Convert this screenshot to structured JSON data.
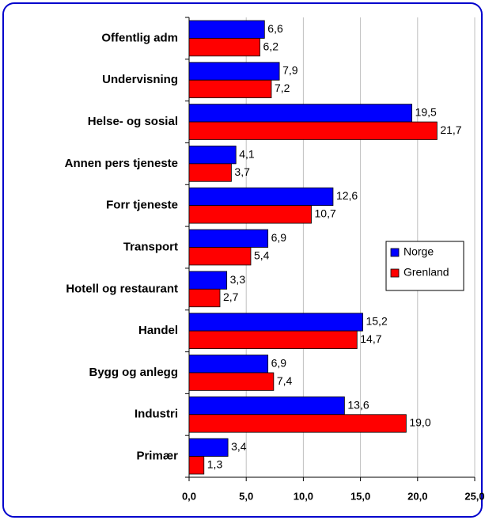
{
  "chart_data": {
    "type": "hbar",
    "categories": [
      "Offentlig adm",
      "Undervisning",
      "Helse- og sosial",
      "Annen pers tjeneste",
      "Forr tjeneste",
      "Transport",
      "Hotell og restaurant",
      "Handel",
      "Bygg og anlegg",
      "Industri",
      "Primær"
    ],
    "series": [
      {
        "name": "Norge",
        "color": "#0000ff",
        "values": [
          6.6,
          7.9,
          19.5,
          4.1,
          12.6,
          6.9,
          3.3,
          15.2,
          6.9,
          13.6,
          3.4
        ],
        "value_labels": [
          "6,6",
          "7,9",
          "19,5",
          "4,1",
          "12,6",
          "6,9",
          "3,3",
          "15,2",
          "6,9",
          "13,6",
          "3,4"
        ]
      },
      {
        "name": "Grenland",
        "color": "#ff0000",
        "values": [
          6.2,
          7.2,
          21.7,
          3.7,
          10.7,
          5.4,
          2.7,
          14.7,
          7.4,
          19.0,
          1.3
        ],
        "value_labels": [
          "6,2",
          "7,2",
          "21,7",
          "3,7",
          "10,7",
          "5,4",
          "2,7",
          "14,7",
          "7,4",
          "19,0",
          "1,3"
        ]
      }
    ],
    "xlim": [
      0,
      25
    ],
    "xticks": [
      {
        "value": 0,
        "label": "0,0"
      },
      {
        "value": 5,
        "label": "5,0"
      },
      {
        "value": 10,
        "label": "10,0"
      },
      {
        "value": 15,
        "label": "15,0"
      },
      {
        "value": 20,
        "label": "20,0"
      },
      {
        "value": 25,
        "label": "25,0"
      }
    ],
    "grid": true,
    "legend": "right"
  }
}
